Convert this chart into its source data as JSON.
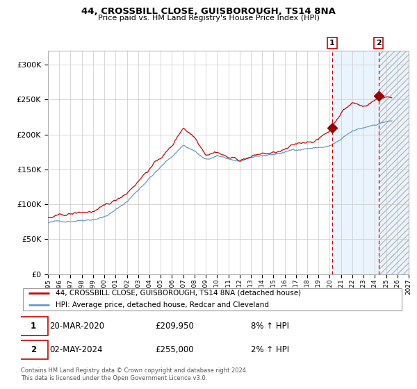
{
  "title": "44, CROSSBILL CLOSE, GUISBOROUGH, TS14 8NA",
  "subtitle": "Price paid vs. HM Land Registry's House Price Index (HPI)",
  "legend_line1": "44, CROSSBILL CLOSE, GUISBOROUGH, TS14 8NA (detached house)",
  "legend_line2": "HPI: Average price, detached house, Redcar and Cleveland",
  "annotation1_date": "20-MAR-2020",
  "annotation1_price": "£209,950",
  "annotation1_hpi": "8% ↑ HPI",
  "annotation1_year": 2020.22,
  "annotation1_value": 209950,
  "annotation2_date": "02-MAY-2024",
  "annotation2_price": "£255,000",
  "annotation2_hpi": "2% ↑ HPI",
  "annotation2_year": 2024.33,
  "annotation2_value": 255000,
  "red_color": "#cc0000",
  "blue_color": "#6699cc",
  "background_color": "#ffffff",
  "shade_color": "#ddeeff",
  "grid_color": "#cccccc",
  "footer": "Contains HM Land Registry data © Crown copyright and database right 2024.\nThis data is licensed under the Open Government Licence v3.0.",
  "ylim": [
    0,
    320000
  ],
  "xlim_start": 1995.0,
  "xlim_end": 2027.0
}
